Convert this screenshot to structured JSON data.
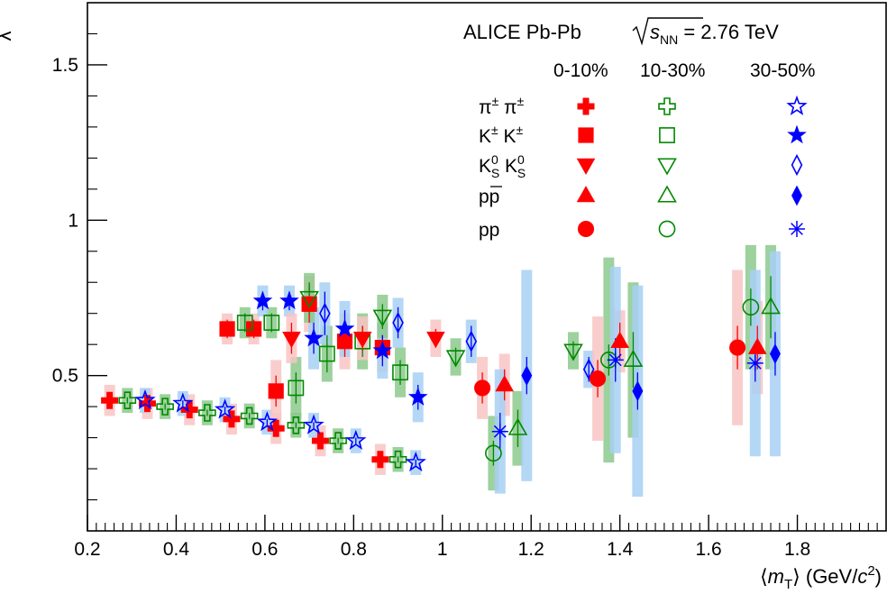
{
  "chart_data": {
    "type": "scatter",
    "title": "",
    "xlabel_html": "⟨m_T⟩ (GeV/c²)",
    "ylabel": "λ",
    "xlim": [
      0.2,
      2.0
    ],
    "ylim": [
      0.0,
      1.7
    ],
    "x_ticks": [
      0.2,
      0.4,
      0.6,
      0.8,
      1.0,
      1.2,
      1.4,
      1.6,
      1.8
    ],
    "x_tick_labels": [
      "0.2",
      "0.4",
      "0.6",
      "0.8",
      "1",
      "1.2",
      "1.4",
      "1.6",
      "1.8"
    ],
    "y_ticks": [
      0.5,
      1.0,
      1.5
    ],
    "y_tick_labels": [
      "0.5",
      "1",
      "1.5"
    ],
    "grid": false,
    "legend_position": "top-right",
    "legend": {
      "header": "ALICE Pb-Pb",
      "energy_suffix": "= 2.76 TeV",
      "columns": [
        "0-10%",
        "10-30%",
        "30-50%"
      ],
      "rows": [
        "π± π±",
        "K± K±",
        "KS0 KS0",
        "pp̄",
        "pp"
      ]
    },
    "colors": {
      "c0_10": "#ff0000",
      "c10_30": "#008800",
      "c30_50": "#0000ff",
      "sys0_10": "#f9c4c4",
      "sys10_30": "#8cc98c",
      "sys30_50": "#a8d0f5"
    },
    "series": [
      {
        "name": "π± π± 0-10%",
        "marker": "cross-filled",
        "color": "red",
        "x": [
          0.25,
          0.335,
          0.43,
          0.525,
          0.625,
          0.725,
          0.86
        ],
        "y": [
          0.42,
          0.41,
          0.39,
          0.36,
          0.33,
          0.29,
          0.23
        ],
        "err": [
          0.01,
          0.01,
          0.01,
          0.01,
          0.01,
          0.01,
          0.01
        ],
        "sys": [
          0.05,
          0.05,
          0.05,
          0.05,
          0.05,
          0.05,
          0.05
        ]
      },
      {
        "name": "π± π± 10-30%",
        "marker": "cross-open",
        "color": "green",
        "x": [
          0.29,
          0.375,
          0.47,
          0.565,
          0.67,
          0.765,
          0.9
        ],
        "y": [
          0.42,
          0.4,
          0.38,
          0.37,
          0.34,
          0.29,
          0.23
        ],
        "err": [
          0.01,
          0.01,
          0.01,
          0.01,
          0.01,
          0.01,
          0.01
        ],
        "sys": [
          0.04,
          0.04,
          0.04,
          0.04,
          0.04,
          0.04,
          0.04
        ]
      },
      {
        "name": "π± π± 30-50%",
        "marker": "star-open",
        "color": "blue",
        "x": [
          0.33,
          0.415,
          0.51,
          0.605,
          0.71,
          0.805,
          0.94
        ],
        "y": [
          0.42,
          0.41,
          0.39,
          0.35,
          0.34,
          0.29,
          0.22
        ],
        "err": [
          0.01,
          0.01,
          0.01,
          0.01,
          0.01,
          0.01,
          0.01
        ],
        "sys": [
          0.04,
          0.04,
          0.04,
          0.04,
          0.04,
          0.04,
          0.04
        ]
      },
      {
        "name": "K± K± 0-10%",
        "marker": "square-filled",
        "color": "red",
        "x": [
          0.515,
          0.575,
          0.625,
          0.7,
          0.78,
          0.865
        ],
        "y": [
          0.65,
          0.65,
          0.45,
          0.73,
          0.61,
          0.59
        ],
        "err": [
          0.03,
          0.03,
          0.05,
          0.06,
          0.05,
          0.04
        ],
        "sys": [
          0.05,
          0.05,
          0.1,
          0.09,
          0.09,
          0.08
        ]
      },
      {
        "name": "K± K± 10-30%",
        "marker": "square-open",
        "color": "green",
        "x": [
          0.555,
          0.615,
          0.67,
          0.74,
          0.82,
          0.905
        ],
        "y": [
          0.67,
          0.67,
          0.46,
          0.57,
          0.61,
          0.51
        ],
        "err": [
          0.03,
          0.03,
          0.05,
          0.06,
          0.05,
          0.04
        ],
        "sys": [
          0.05,
          0.05,
          0.1,
          0.09,
          0.09,
          0.08
        ]
      },
      {
        "name": "K± K± 30-50%",
        "marker": "star-filled",
        "color": "blue",
        "x": [
          0.595,
          0.655,
          0.71,
          0.78,
          0.865,
          0.945
        ],
        "y": [
          0.74,
          0.74,
          0.62,
          0.65,
          0.58,
          0.43
        ],
        "err": [
          0.03,
          0.03,
          0.05,
          0.06,
          0.05,
          0.04
        ],
        "sys": [
          0.05,
          0.05,
          0.1,
          0.09,
          0.09,
          0.08
        ]
      },
      {
        "name": "KS0 KS0 0-10%",
        "marker": "triangle-down-filled",
        "color": "red",
        "x": [
          0.66,
          0.82,
          0.985
        ],
        "y": [
          0.62,
          0.62,
          0.62
        ],
        "err": [
          0.05,
          0.04,
          0.03
        ],
        "sys": [
          0.08,
          0.07,
          0.06
        ]
      },
      {
        "name": "KS0 KS0 10-30%",
        "marker": "triangle-down-open",
        "color": "green",
        "x": [
          0.7,
          0.865,
          1.03,
          1.295
        ],
        "y": [
          0.75,
          0.69,
          0.56,
          0.58
        ],
        "err": [
          0.05,
          0.04,
          0.03,
          0.03
        ],
        "sys": [
          0.08,
          0.07,
          0.06,
          0.06
        ]
      },
      {
        "name": "KS0 KS0 30-50%",
        "marker": "diamond-open",
        "color": "blue",
        "x": [
          0.735,
          0.9,
          1.065,
          1.33
        ],
        "y": [
          0.7,
          0.67,
          0.61,
          0.52
        ],
        "err": [
          0.07,
          0.05,
          0.05,
          0.04
        ],
        "sys": [
          0.1,
          0.08,
          0.07,
          0.06
        ]
      },
      {
        "name": "pp̄ 0-10%",
        "marker": "triangle-up-filled",
        "color": "red",
        "x": [
          1.14,
          1.4,
          1.71
        ],
        "y": [
          0.47,
          0.61,
          0.59
        ],
        "err": [
          0.05,
          0.06,
          0.07
        ],
        "sys": [
          0.1,
          0.1,
          0.15
        ]
      },
      {
        "name": "pp̄ 10-30%",
        "marker": "triangle-up-open",
        "color": "green",
        "x": [
          1.17,
          1.43,
          1.74
        ],
        "y": [
          0.33,
          0.55,
          0.72
        ],
        "err": [
          0.06,
          0.09,
          0.1
        ],
        "sys": [
          0.12,
          0.25,
          0.2
        ]
      },
      {
        "name": "pp̄ 30-50%",
        "marker": "diamond-filled",
        "color": "blue",
        "x": [
          1.19,
          1.44,
          1.75
        ],
        "y": [
          0.5,
          0.45,
          0.57
        ],
        "err": [
          0.06,
          0.06,
          0.07
        ],
        "sys": [
          0.34,
          0.34,
          0.33
        ]
      },
      {
        "name": "pp 0-10%",
        "marker": "circle-filled",
        "color": "red",
        "x": [
          1.09,
          1.35,
          1.665
        ],
        "y": [
          0.46,
          0.49,
          0.59
        ],
        "err": [
          0.05,
          0.06,
          0.07
        ],
        "sys": [
          0.1,
          0.2,
          0.25
        ]
      },
      {
        "name": "pp 10-30%",
        "marker": "circle-open",
        "color": "green",
        "x": [
          1.115,
          1.375,
          1.695
        ],
        "y": [
          0.25,
          0.55,
          0.72
        ],
        "err": [
          0.04,
          0.05,
          0.06
        ],
        "sys": [
          0.12,
          0.33,
          0.2
        ]
      },
      {
        "name": "pp 30-50%",
        "marker": "asterisk",
        "color": "blue",
        "x": [
          1.13,
          1.39,
          1.705
        ],
        "y": [
          0.32,
          0.55,
          0.54
        ],
        "err": [
          0.06,
          0.07,
          0.06
        ],
        "sys": [
          0.2,
          0.3,
          0.3
        ]
      }
    ]
  }
}
